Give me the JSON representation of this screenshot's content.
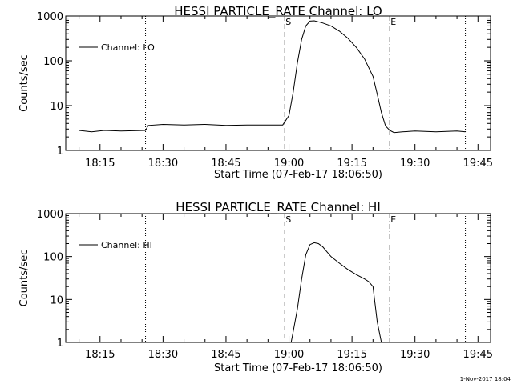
{
  "footer": {
    "timestamp": "1-Nov-2017 18:04"
  },
  "chart_data": [
    {
      "type": "line",
      "title": "HESSI PARTICLE_RATE Channel: LO",
      "xlabel": "Start Time (07-Feb-17 18:06:50)",
      "ylabel": "Counts/sec",
      "y_scale": "log",
      "xlim": [
        "18:06:50",
        "19:48:00"
      ],
      "ylim": [
        1,
        1000
      ],
      "x_tick_labels": [
        "18:15",
        "18:30",
        "18:45",
        "19:00",
        "19:15",
        "19:30",
        "19:45"
      ],
      "y_tick_labels": [
        "1",
        "10",
        "100",
        "1000"
      ],
      "legend": {
        "position": "top-left",
        "entries": [
          "Channel: LO"
        ]
      },
      "markers": [
        {
          "time": "18:25:50",
          "style": "dotted",
          "label": ""
        },
        {
          "time": "18:59:00",
          "style": "dashed",
          "label": "S"
        },
        {
          "time": "19:24:00",
          "style": "dash-dot",
          "label": "E"
        },
        {
          "time": "19:42:00",
          "style": "dotted",
          "label": ""
        }
      ],
      "series": [
        {
          "name": "Channel: LO",
          "x": [
            "18:10:00",
            "18:13:00",
            "18:16:00",
            "18:20:00",
            "18:25:50",
            "18:26:30",
            "18:30:00",
            "18:35:00",
            "18:40:00",
            "18:45:00",
            "18:50:00",
            "18:55:00",
            "18:58:30",
            "19:00:00",
            "19:01:00",
            "19:02:00",
            "19:03:00",
            "19:04:00",
            "19:05:00",
            "19:06:00",
            "19:07:00",
            "19:08:00",
            "19:10:00",
            "19:12:00",
            "19:14:00",
            "19:16:00",
            "19:18:00",
            "19:20:00",
            "19:21:00",
            "19:22:00",
            "19:23:00",
            "19:24:00",
            "19:25:00",
            "19:27:00",
            "19:30:00",
            "19:35:00",
            "19:40:00",
            "19:42:00"
          ],
          "y": [
            2.8,
            2.6,
            2.8,
            2.7,
            2.8,
            3.6,
            3.8,
            3.7,
            3.8,
            3.6,
            3.7,
            3.7,
            3.7,
            6,
            20,
            90,
            300,
            600,
            770,
            780,
            740,
            700,
            600,
            460,
            320,
            200,
            110,
            45,
            18,
            7,
            3.5,
            2.8,
            2.5,
            2.6,
            2.7,
            2.6,
            2.7,
            2.6
          ]
        }
      ]
    },
    {
      "type": "line",
      "title": "HESSI PARTICLE_RATE Channel: HI",
      "xlabel": "Start Time (07-Feb-17 18:06:50)",
      "ylabel": "Counts/sec",
      "y_scale": "log",
      "xlim": [
        "18:06:50",
        "19:48:00"
      ],
      "ylim": [
        1,
        1000
      ],
      "x_tick_labels": [
        "18:15",
        "18:30",
        "18:45",
        "19:00",
        "19:15",
        "19:30",
        "19:45"
      ],
      "y_tick_labels": [
        "1",
        "10",
        "100",
        "1000"
      ],
      "legend": {
        "position": "top-left",
        "entries": [
          "Channel: HI"
        ]
      },
      "markers": [
        {
          "time": "18:25:50",
          "style": "dotted",
          "label": ""
        },
        {
          "time": "18:59:00",
          "style": "dashed",
          "label": "S"
        },
        {
          "time": "19:24:00",
          "style": "dash-dot",
          "label": "E"
        },
        {
          "time": "19:42:00",
          "style": "dotted",
          "label": ""
        }
      ],
      "series": [
        {
          "name": "Channel: HI",
          "x": [
            "19:00:30",
            "19:01:00",
            "19:02:00",
            "19:03:00",
            "19:04:00",
            "19:05:00",
            "19:06:00",
            "19:07:00",
            "19:08:00",
            "19:09:00",
            "19:10:00",
            "19:12:00",
            "19:14:00",
            "19:16:00",
            "19:18:00",
            "19:19:00",
            "19:20:00",
            "19:21:00",
            "19:22:00"
          ],
          "y": [
            1,
            1.8,
            6,
            30,
            110,
            190,
            210,
            200,
            170,
            130,
            100,
            70,
            50,
            38,
            30,
            26,
            20,
            3,
            1
          ]
        }
      ]
    }
  ]
}
